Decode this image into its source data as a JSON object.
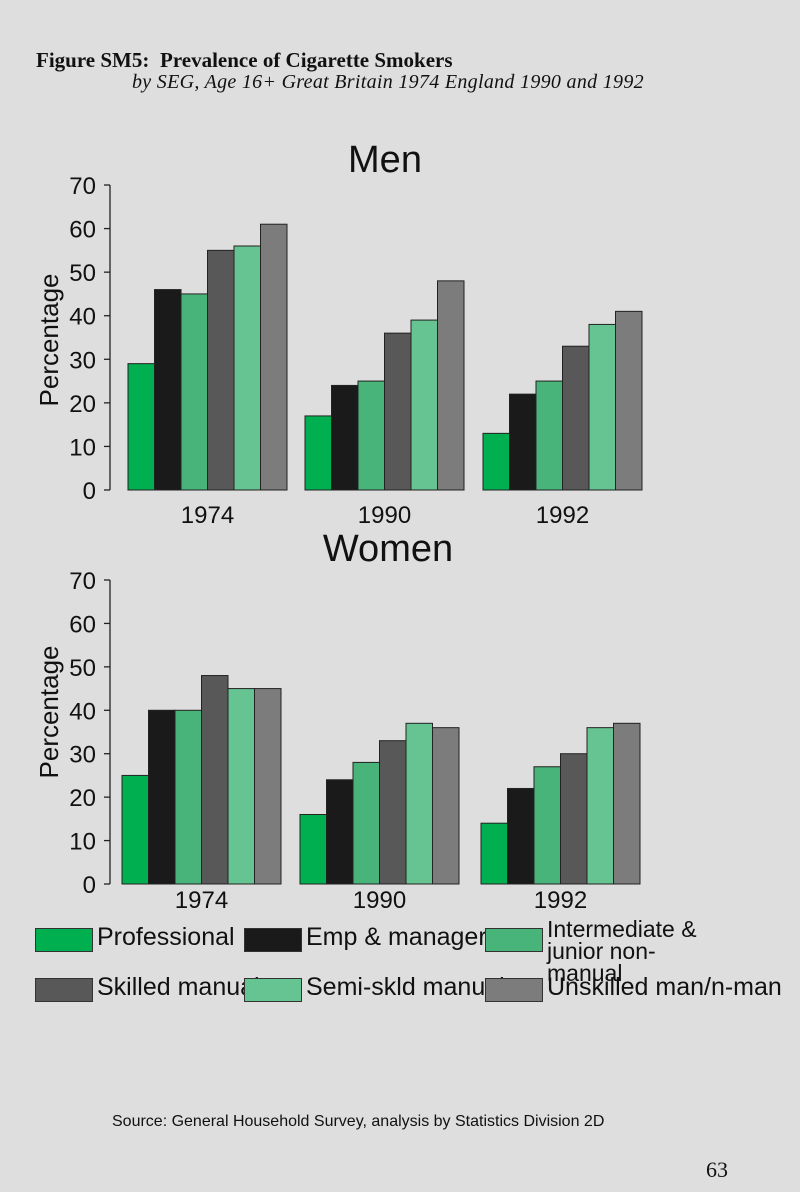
{
  "figure_label": "Figure SM5:",
  "title": "Prevalence of Cigarette Smokers",
  "subtitle": "by SEG, Age 16+   Great Britain 1974   England 1990 and 1992",
  "legend": [
    {
      "label": "Professional",
      "color": "#00b050"
    },
    {
      "label": "Emp & managers",
      "color": "#1a1a1a"
    },
    {
      "label": "Intermediate & junior non-manual",
      "color": "#48b47a"
    },
    {
      "label": "Skilled manual",
      "color": "#585858"
    },
    {
      "label": "Semi-skld manual",
      "color": "#66c493"
    },
    {
      "label": "Unskilled man/n-man",
      "color": "#7c7c7c"
    }
  ],
  "source": "Source: General Household Survey, analysis by Statistics Division 2D",
  "page_number": "63",
  "chart_data": [
    {
      "type": "bar",
      "title": "Men",
      "ylabel": "Percentage",
      "ylim": [
        0,
        70
      ],
      "yticks": [
        0,
        10,
        20,
        30,
        40,
        50,
        60,
        70
      ],
      "categories": [
        "1974",
        "1990",
        "1992"
      ],
      "series": [
        {
          "name": "Professional",
          "values": [
            29,
            17,
            13
          ]
        },
        {
          "name": "Emp & managers",
          "values": [
            46,
            24,
            22
          ]
        },
        {
          "name": "Intermediate & junior non-manual",
          "values": [
            45,
            25,
            25
          ]
        },
        {
          "name": "Skilled manual",
          "values": [
            55,
            36,
            33
          ]
        },
        {
          "name": "Semi-skld manual",
          "values": [
            56,
            39,
            38
          ]
        },
        {
          "name": "Unskilled man/n-man",
          "values": [
            61,
            48,
            41
          ]
        }
      ]
    },
    {
      "type": "bar",
      "title": "Women",
      "ylabel": "Percentage",
      "ylim": [
        0,
        70
      ],
      "yticks": [
        0,
        10,
        20,
        30,
        40,
        50,
        60,
        70
      ],
      "categories": [
        "1974",
        "1990",
        "1992"
      ],
      "series": [
        {
          "name": "Professional",
          "values": [
            25,
            16,
            14
          ]
        },
        {
          "name": "Emp & managers",
          "values": [
            40,
            24,
            22
          ]
        },
        {
          "name": "Intermediate & junior non-manual",
          "values": [
            40,
            28,
            27
          ]
        },
        {
          "name": "Skilled manual",
          "values": [
            48,
            33,
            30
          ]
        },
        {
          "name": "Semi-skld manual",
          "values": [
            45,
            37,
            36
          ]
        },
        {
          "name": "Unskilled man/n-man",
          "values": [
            45,
            36,
            37
          ]
        }
      ]
    }
  ]
}
